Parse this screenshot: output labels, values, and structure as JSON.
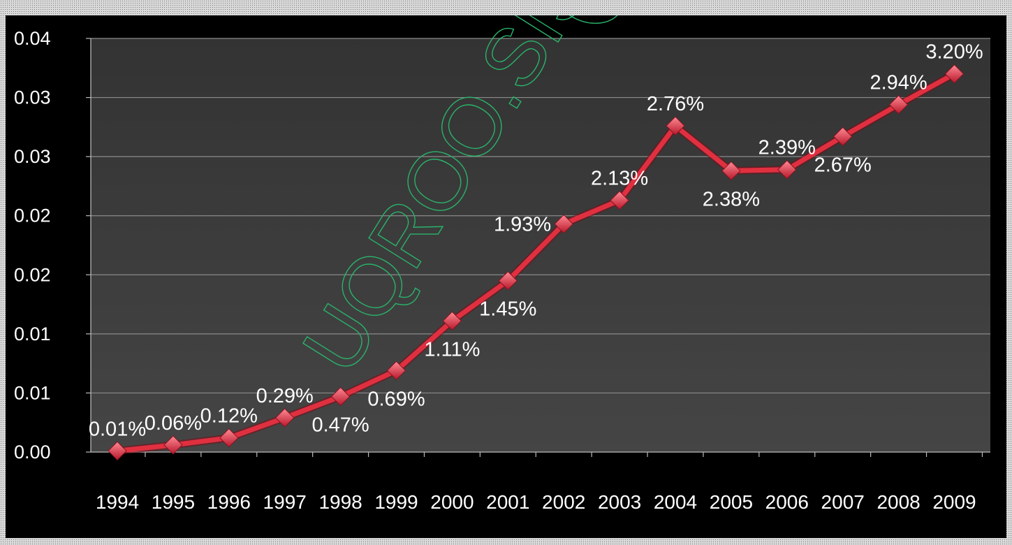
{
  "watermark": "UQROO.SISBI.",
  "chart_data": {
    "type": "line",
    "title": "",
    "xlabel": "",
    "ylabel": "",
    "categories": [
      "1994",
      "1995",
      "1996",
      "1997",
      "1998",
      "1999",
      "2000",
      "2001",
      "2002",
      "2003",
      "2004",
      "2005",
      "2006",
      "2007",
      "2008",
      "2009"
    ],
    "series": [
      {
        "values": [
          0.0001,
          0.0006,
          0.0012,
          0.0029,
          0.0047,
          0.0069,
          0.0111,
          0.0145,
          0.0193,
          0.0213,
          0.0276,
          0.0238,
          0.0239,
          0.0267,
          0.0294,
          0.032
        ],
        "data_labels": [
          "0.01%",
          "0.06%",
          "0.12%",
          "0.29%",
          "0.47%",
          "0.69%",
          "1.11%",
          "1.45%",
          "1.93%",
          "2.13%",
          "2.76%",
          "2.38%",
          "2.39%",
          "2.67%",
          "2.94%",
          "3.20%"
        ],
        "label_positions": [
          "above",
          "above",
          "above",
          "above",
          "below",
          "below",
          "below",
          "below",
          "left",
          "above",
          "above",
          "below",
          "above",
          "below",
          "above",
          "above"
        ],
        "color": "#e03040"
      }
    ],
    "ylim": [
      0,
      0.035
    ],
    "yticks": [
      0,
      0.005,
      0.01,
      0.015,
      0.02,
      0.025,
      0.03,
      0.035
    ],
    "ytick_labels": [
      "0.00",
      "0.01",
      "0.01",
      "0.02",
      "0.02",
      "0.03",
      "0.03",
      "0.04"
    ],
    "grid": true,
    "legend": "none",
    "colors": {
      "plot_background": "#3a3a3a",
      "background": "#000000",
      "gridline": "#8a8a8a",
      "text": "#ffffff",
      "line": "#e03040"
    }
  }
}
